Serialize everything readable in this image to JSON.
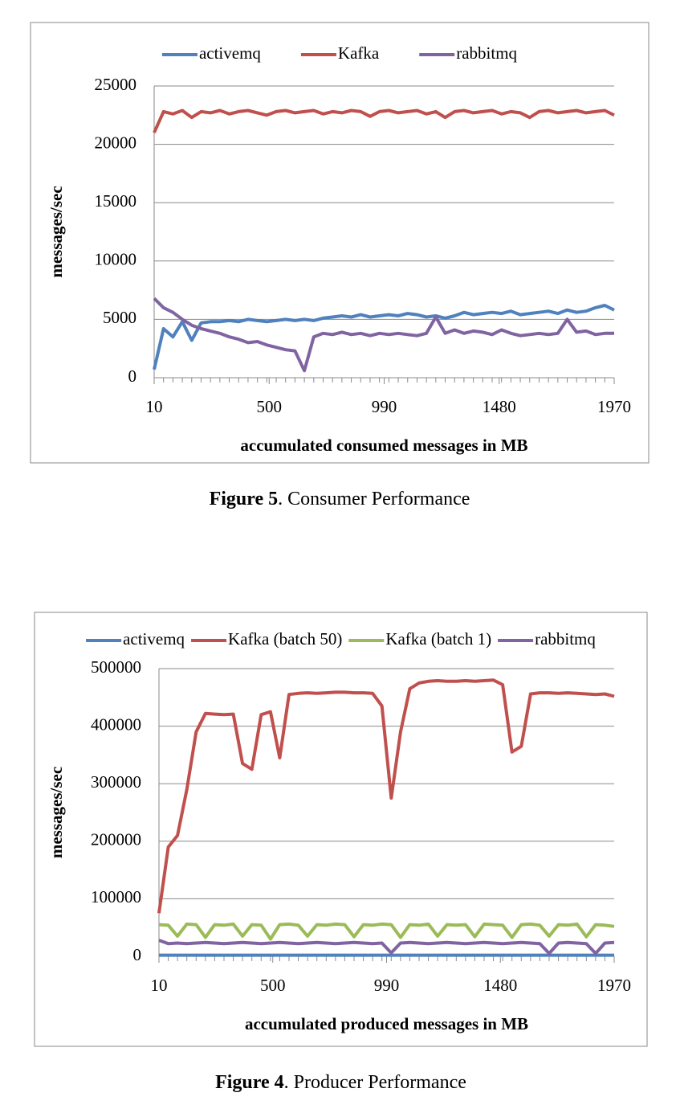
{
  "chart_data": [
    {
      "type": "line",
      "figure": "Figure 5",
      "caption": ". Consumer Performance",
      "xlabel": "accumulated consumed messages in MB",
      "ylabel": "messages/sec",
      "x": [
        10,
        50,
        90,
        130,
        170,
        210,
        250,
        290,
        330,
        370,
        410,
        450,
        490,
        530,
        570,
        610,
        650,
        690,
        730,
        770,
        810,
        850,
        890,
        930,
        970,
        1010,
        1050,
        1090,
        1130,
        1170,
        1210,
        1250,
        1290,
        1330,
        1370,
        1410,
        1450,
        1490,
        1530,
        1570,
        1610,
        1650,
        1690,
        1730,
        1770,
        1810,
        1850,
        1890,
        1930,
        1970
      ],
      "xlim": [
        10,
        1970
      ],
      "xticks": [
        10,
        500,
        990,
        1480,
        1970
      ],
      "ylim": [
        0,
        25000
      ],
      "yticks": [
        0,
        5000,
        10000,
        15000,
        20000,
        25000
      ],
      "grid": true,
      "legend": "top",
      "series": [
        {
          "name": "activemq",
          "color": "#4f81bd",
          "values": [
            700,
            4200,
            3500,
            4800,
            3200,
            4700,
            4800,
            4800,
            4900,
            4800,
            5000,
            4900,
            4800,
            4900,
            5000,
            4900,
            5000,
            4900,
            5100,
            5200,
            5300,
            5200,
            5400,
            5200,
            5300,
            5400,
            5300,
            5500,
            5400,
            5200,
            5300,
            5100,
            5300,
            5600,
            5400,
            5500,
            5600,
            5500,
            5700,
            5400,
            5500,
            5600,
            5700,
            5500,
            5800,
            5600,
            5700,
            6000,
            6200,
            5800
          ]
        },
        {
          "name": "Kafka",
          "color": "#c0504d",
          "values": [
            21000,
            22800,
            22600,
            22900,
            22300,
            22800,
            22700,
            22900,
            22600,
            22800,
            22900,
            22700,
            22500,
            22800,
            22900,
            22700,
            22800,
            22900,
            22600,
            22800,
            22700,
            22900,
            22800,
            22400,
            22800,
            22900,
            22700,
            22800,
            22900,
            22600,
            22800,
            22300,
            22800,
            22900,
            22700,
            22800,
            22900,
            22600,
            22800,
            22700,
            22300,
            22800,
            22900,
            22700,
            22800,
            22900,
            22700,
            22800,
            22900,
            22500
          ]
        },
        {
          "name": "rabbitmq",
          "color": "#8064a2",
          "values": [
            6800,
            6000,
            5600,
            5000,
            4500,
            4200,
            4000,
            3800,
            3500,
            3300,
            3000,
            3100,
            2800,
            2600,
            2400,
            2300,
            600,
            3500,
            3800,
            3700,
            3900,
            3700,
            3800,
            3600,
            3800,
            3700,
            3800,
            3700,
            3600,
            3800,
            5200,
            3800,
            4100,
            3800,
            4000,
            3900,
            3700,
            4100,
            3800,
            3600,
            3700,
            3800,
            3700,
            3800,
            5000,
            3900,
            4000,
            3700,
            3800,
            3800
          ]
        }
      ]
    },
    {
      "type": "line",
      "figure": "Figure 4",
      "caption": ". Producer Performance",
      "xlabel": "accumulated produced messages in MB",
      "ylabel": "messages/sec",
      "x": [
        10,
        50,
        90,
        130,
        170,
        210,
        250,
        290,
        330,
        370,
        410,
        450,
        490,
        530,
        570,
        610,
        650,
        690,
        730,
        770,
        810,
        850,
        890,
        930,
        970,
        1010,
        1050,
        1090,
        1130,
        1170,
        1210,
        1250,
        1290,
        1330,
        1370,
        1410,
        1450,
        1490,
        1530,
        1570,
        1610,
        1650,
        1690,
        1730,
        1770,
        1810,
        1850,
        1890,
        1930,
        1970
      ],
      "xlim": [
        10,
        1970
      ],
      "xticks": [
        10,
        500,
        990,
        1480,
        1970
      ],
      "ylim": [
        0,
        500000
      ],
      "yticks": [
        0,
        100000,
        200000,
        300000,
        400000,
        500000
      ],
      "grid": true,
      "legend": "top",
      "series": [
        {
          "name": "activemq",
          "color": "#4f81bd",
          "values": [
            2000,
            2000,
            2000,
            2000,
            2000,
            2000,
            2000,
            2000,
            2000,
            2000,
            2000,
            2000,
            2000,
            2000,
            2000,
            2000,
            2000,
            2000,
            2000,
            2000,
            2000,
            2000,
            2000,
            2000,
            2000,
            2000,
            2000,
            2000,
            2000,
            2000,
            2000,
            2000,
            2000,
            2000,
            2000,
            2000,
            2000,
            2000,
            2000,
            2000,
            2000,
            2000,
            2000,
            2000,
            2000,
            2000,
            2000,
            2000,
            2000,
            2000
          ]
        },
        {
          "name": "Kafka (batch 50)",
          "color": "#c0504d",
          "values": [
            75000,
            190000,
            210000,
            290000,
            390000,
            422000,
            421000,
            420000,
            421000,
            335000,
            325000,
            420000,
            425000,
            345000,
            455000,
            457000,
            458000,
            457000,
            458000,
            459000,
            459000,
            458000,
            458000,
            457000,
            435000,
            275000,
            390000,
            465000,
            475000,
            478000,
            479000,
            478000,
            478000,
            479000,
            478000,
            479000,
            480000,
            472000,
            355000,
            365000,
            456000,
            458000,
            458000,
            457000,
            458000,
            457000,
            456000,
            455000,
            456000,
            452000
          ]
        },
        {
          "name": "Kafka (batch 1)",
          "color": "#9bbb59",
          "values": [
            55000,
            54000,
            35000,
            56000,
            55000,
            33000,
            55000,
            54000,
            56000,
            35000,
            55000,
            54000,
            30000,
            55000,
            56000,
            54000,
            35000,
            55000,
            54000,
            56000,
            55000,
            34000,
            55000,
            54000,
            56000,
            55000,
            33000,
            55000,
            54000,
            56000,
            35000,
            55000,
            54000,
            55000,
            34000,
            56000,
            55000,
            54000,
            33000,
            55000,
            56000,
            54000,
            35000,
            55000,
            54000,
            56000,
            34000,
            55000,
            54000,
            52000
          ]
        },
        {
          "name": "rabbitmq",
          "color": "#8064a2",
          "values": [
            28000,
            22000,
            23000,
            22000,
            23000,
            24000,
            23000,
            22000,
            23000,
            24000,
            23000,
            22000,
            23000,
            24000,
            23000,
            22000,
            23000,
            24000,
            23000,
            22000,
            23000,
            24000,
            23000,
            22000,
            23000,
            6000,
            23000,
            24000,
            23000,
            22000,
            23000,
            24000,
            23000,
            22000,
            23000,
            24000,
            23000,
            22000,
            23000,
            24000,
            23000,
            22000,
            5000,
            23000,
            24000,
            23000,
            22000,
            5000,
            23000,
            24000
          ]
        }
      ]
    }
  ]
}
